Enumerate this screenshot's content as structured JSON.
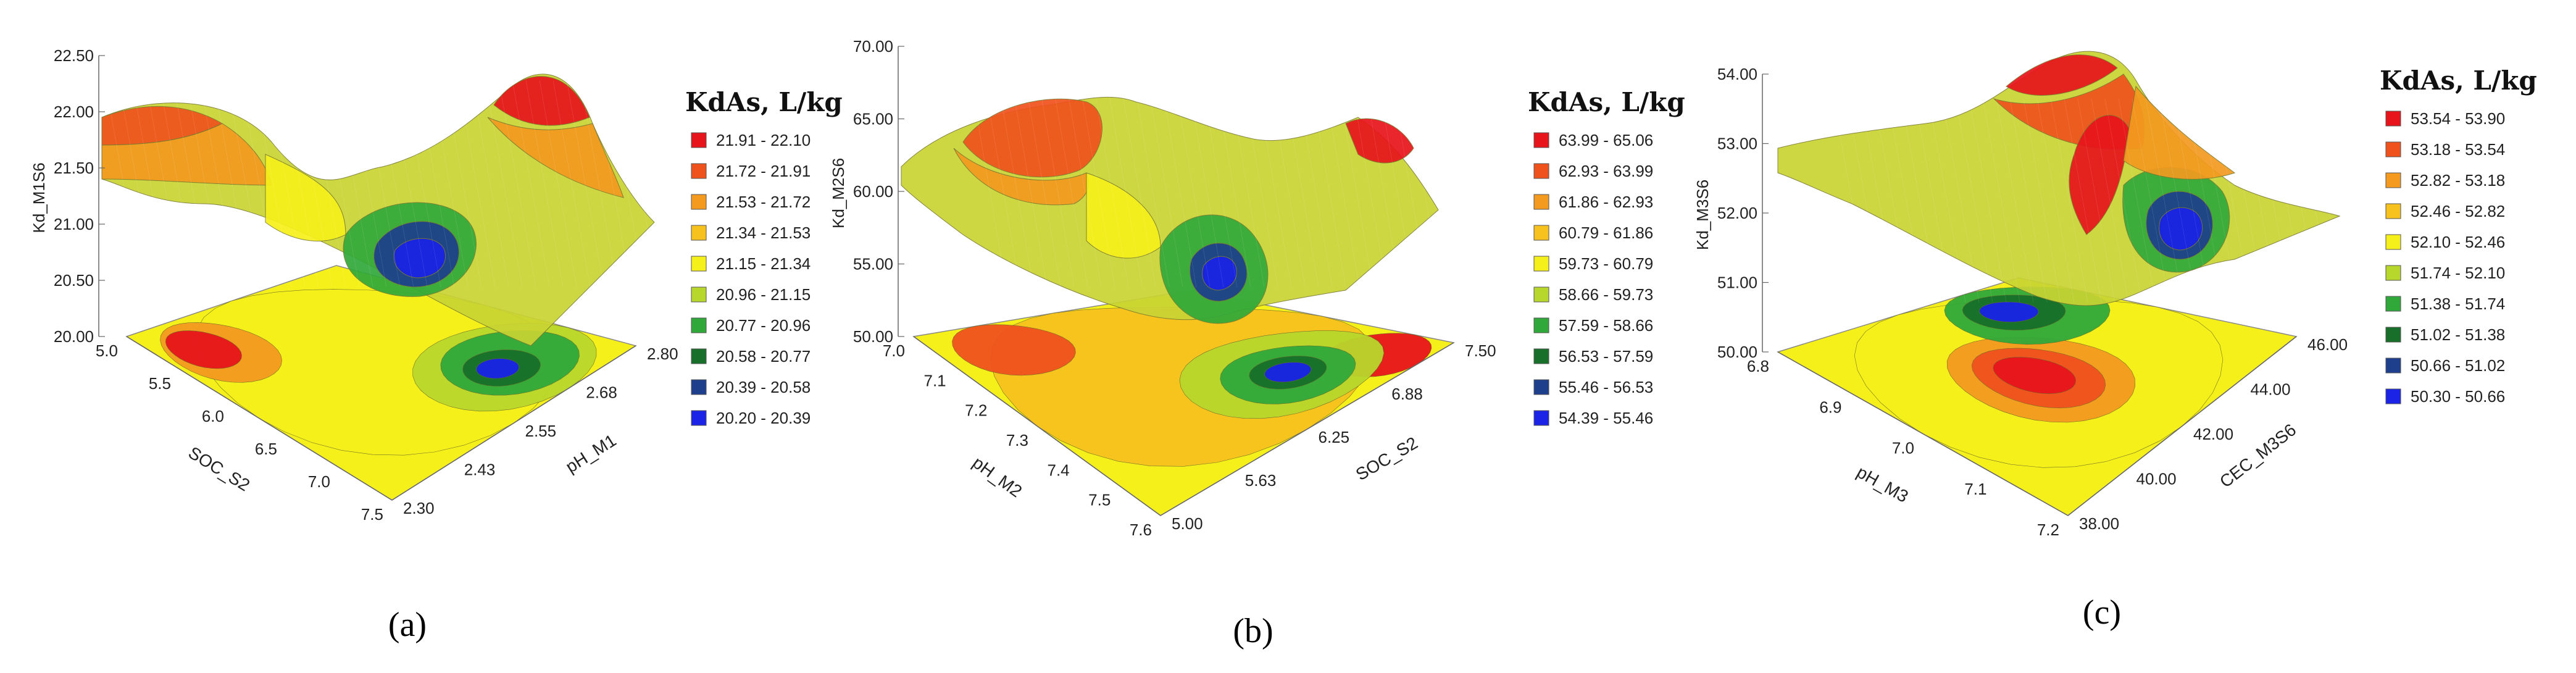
{
  "chart_data": [
    {
      "type": "surface3d",
      "caption": "(a)",
      "zlabel": "Kd_M1S6",
      "xlabel": "SOC_S2",
      "ylabel": "pH_M1",
      "z_ticks": [
        "22.50",
        "22.00",
        "21.50",
        "21.00",
        "20.50",
        "20.00"
      ],
      "x_ticks": [
        "5.0",
        "5.5",
        "6.0",
        "6.5",
        "7.0",
        "7.5"
      ],
      "y_ticks": [
        "2.30",
        "2.43",
        "2.55",
        "2.68",
        "2.80"
      ],
      "legend": {
        "title": "KdAs, L/kg",
        "items": [
          {
            "label": "21.91 - 22.10",
            "color": "#e8141b"
          },
          {
            "label": "21.72 - 21.91",
            "color": "#f0521d"
          },
          {
            "label": "21.53 - 21.72",
            "color": "#f39a1f"
          },
          {
            "label": "21.34 - 21.53",
            "color": "#f7c21e"
          },
          {
            "label": "21.15 - 21.34",
            "color": "#f6f01a"
          },
          {
            "label": "20.96 - 21.15",
            "color": "#b8d72c"
          },
          {
            "label": "20.77 - 20.96",
            "color": "#30a93a"
          },
          {
            "label": "20.58 - 20.77",
            "color": "#176f2a"
          },
          {
            "label": "20.39 - 20.58",
            "color": "#1e3f8c"
          },
          {
            "label": "20.20 - 20.39",
            "color": "#1a23e6"
          }
        ]
      }
    },
    {
      "type": "surface3d",
      "caption": "(b)",
      "zlabel": "Kd_M2S6",
      "xlabel": "pH_M2",
      "ylabel": "SOC_S2",
      "z_ticks": [
        "70.00",
        "65.00",
        "60.00",
        "55.00",
        "50.00"
      ],
      "x_ticks": [
        "7.0",
        "7.1",
        "7.2",
        "7.3",
        "7.4",
        "7.5",
        "7.6"
      ],
      "y_ticks": [
        "5.00",
        "5.63",
        "6.25",
        "6.88",
        "7.50"
      ],
      "legend": {
        "title": "KdAs, L/kg",
        "items": [
          {
            "label": "63.99 - 65.06",
            "color": "#e8141b"
          },
          {
            "label": "62.93 - 63.99",
            "color": "#f0521d"
          },
          {
            "label": "61.86 - 62.93",
            "color": "#f39a1f"
          },
          {
            "label": "60.79 - 61.86",
            "color": "#f7c21e"
          },
          {
            "label": "59.73 - 60.79",
            "color": "#f6f01a"
          },
          {
            "label": "58.66 - 59.73",
            "color": "#b8d72c"
          },
          {
            "label": "57.59 - 58.66",
            "color": "#30a93a"
          },
          {
            "label": "56.53 - 57.59",
            "color": "#176f2a"
          },
          {
            "label": "55.46 - 56.53",
            "color": "#1e3f8c"
          },
          {
            "label": "54.39 - 55.46",
            "color": "#1a23e6"
          }
        ]
      }
    },
    {
      "type": "surface3d",
      "caption": "(c)",
      "zlabel": "Kd_M3S6",
      "xlabel": "pH_M3",
      "ylabel": "CEC_M3S6",
      "z_ticks": [
        "54.00",
        "53.00",
        "52.00",
        "51.00",
        "50.00"
      ],
      "x_ticks": [
        "6.8",
        "6.9",
        "7.0",
        "7.1",
        "7.2"
      ],
      "y_ticks": [
        "38.00",
        "40.00",
        "42.00",
        "44.00",
        "46.00"
      ],
      "legend": {
        "title": "KdAs, L/kg",
        "items": [
          {
            "label": "53.54 - 53.90",
            "color": "#e8141b"
          },
          {
            "label": "53.18 - 53.54",
            "color": "#f0521d"
          },
          {
            "label": "52.82 - 53.18",
            "color": "#f39a1f"
          },
          {
            "label": "52.46 - 52.82",
            "color": "#f7c21e"
          },
          {
            "label": "52.10 - 52.46",
            "color": "#f6f01a"
          },
          {
            "label": "51.74 - 52.10",
            "color": "#b8d72c"
          },
          {
            "label": "51.38 - 51.74",
            "color": "#30a93a"
          },
          {
            "label": "51.02 - 51.38",
            "color": "#176f2a"
          },
          {
            "label": "50.66 - 51.02",
            "color": "#1e3f8c"
          },
          {
            "label": "50.30 - 50.66",
            "color": "#1a23e6"
          }
        ]
      }
    }
  ]
}
